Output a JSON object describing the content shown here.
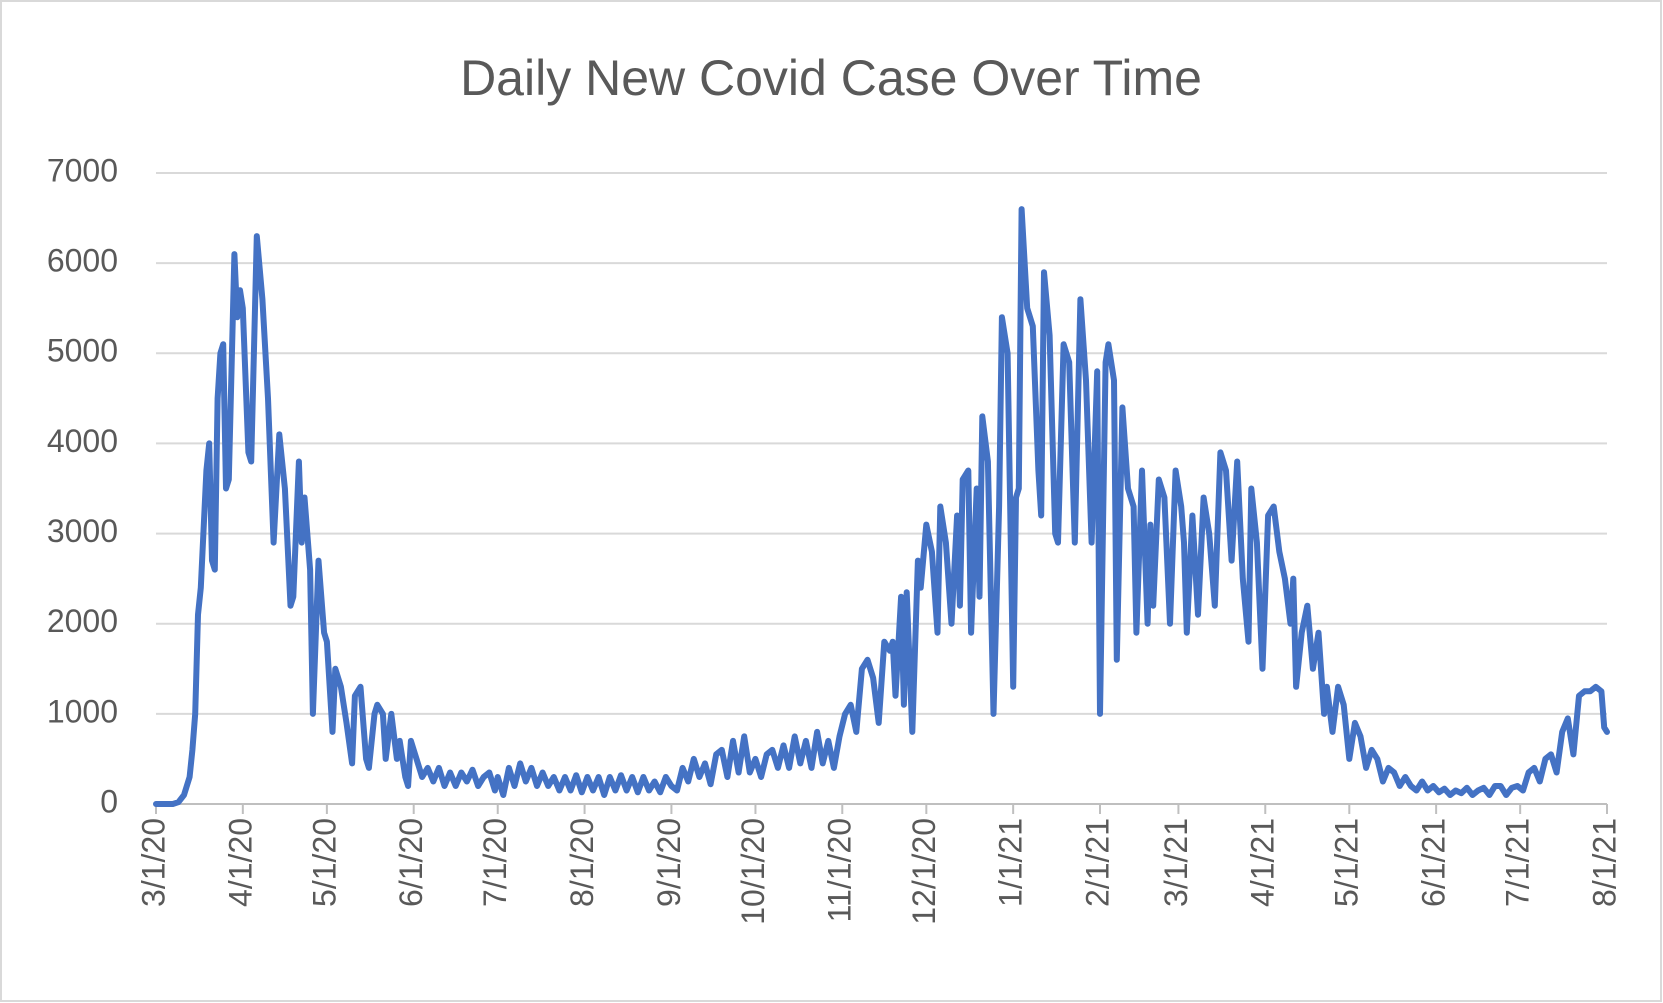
{
  "chart_data": {
    "type": "line",
    "title": "Daily New Covid Case Over Time",
    "x": [
      0,
      6,
      8,
      10,
      12,
      13,
      14,
      15,
      16,
      18,
      19,
      20,
      21,
      22,
      23,
      24,
      25,
      26,
      28,
      29,
      30,
      31,
      33,
      34,
      36,
      38,
      40,
      42,
      44,
      46,
      48,
      49,
      51,
      52,
      53,
      55,
      56,
      58,
      60,
      61,
      63,
      64,
      66,
      68,
      70,
      71,
      73,
      75,
      76,
      78,
      79,
      81,
      82,
      84,
      86,
      87,
      89,
      90,
      91,
      93,
      95,
      97,
      99,
      101,
      103,
      105,
      107,
      109,
      111,
      113,
      115,
      117,
      119,
      121,
      122,
      124,
      126,
      128,
      130,
      132,
      134,
      136,
      138,
      140,
      142,
      144,
      146,
      148,
      150,
      152,
      154,
      156,
      158,
      160,
      162,
      164,
      166,
      168,
      170,
      172,
      174,
      176,
      178,
      180,
      182,
      184,
      186,
      188,
      190,
      192,
      194,
      196,
      198,
      200,
      202,
      204,
      206,
      208,
      210,
      212,
      214,
      216,
      218,
      220,
      222,
      224,
      226,
      228,
      230,
      232,
      234,
      236,
      238,
      240,
      242,
      244,
      246,
      248,
      250,
      252,
      254,
      256,
      258,
      260,
      262,
      263,
      264,
      266,
      267,
      268,
      270,
      272,
      273,
      275,
      277,
      279,
      280,
      282,
      284,
      286,
      287,
      288,
      290,
      291,
      293,
      294,
      295,
      297,
      299,
      301,
      302,
      304,
      306,
      307,
      308,
      309,
      311,
      313,
      315,
      316,
      317,
      319,
      321,
      322,
      324,
      326,
      328,
      330,
      332,
      334,
      336,
      337,
      339,
      340,
      342,
      343,
      345,
      347,
      349,
      350,
      352,
      354,
      355,
      356,
      358,
      360,
      362,
      364,
      366,
      367,
      368,
      370,
      372,
      374,
      376,
      378,
      380,
      382,
      384,
      386,
      388,
      390,
      391,
      393,
      395,
      397,
      399,
      401,
      403,
      405,
      406,
      407,
      409,
      411,
      413,
      415,
      417,
      418,
      420,
      422,
      424,
      426,
      428,
      430,
      432,
      434,
      436,
      438,
      440,
      442,
      444,
      446,
      448,
      450,
      452,
      454,
      456,
      458,
      460,
      462,
      464,
      466,
      468,
      470,
      472,
      474,
      476,
      478,
      480,
      482,
      484,
      486,
      488,
      490,
      492,
      494,
      496,
      498,
      500,
      502,
      504,
      506,
      508,
      510,
      512,
      514,
      516,
      517,
      518
    ],
    "values": [
      0,
      0,
      20,
      100,
      300,
      600,
      1000,
      2100,
      2400,
      3700,
      4000,
      2700,
      2600,
      4500,
      5000,
      5100,
      3500,
      3600,
      6100,
      5400,
      5700,
      5500,
      3900,
      3800,
      6300,
      5600,
      4500,
      2900,
      4100,
      3500,
      2200,
      2300,
      3800,
      2900,
      3400,
      2600,
      1000,
      2700,
      1900,
      1800,
      800,
      1500,
      1300,
      900,
      450,
      1200,
      1300,
      500,
      400,
      1000,
      1100,
      1000,
      500,
      1000,
      500,
      700,
      300,
      200,
      700,
      500,
      300,
      400,
      250,
      400,
      200,
      350,
      200,
      350,
      250,
      380,
      200,
      300,
      350,
      150,
      300,
      100,
      400,
      200,
      450,
      250,
      400,
      200,
      350,
      200,
      300,
      150,
      300,
      150,
      320,
      130,
      300,
      150,
      300,
      100,
      300,
      150,
      320,
      150,
      300,
      130,
      300,
      150,
      250,
      130,
      300,
      200,
      150,
      400,
      250,
      500,
      300,
      450,
      220,
      550,
      600,
      300,
      700,
      350,
      750,
      350,
      500,
      300,
      550,
      600,
      400,
      650,
      400,
      750,
      450,
      700,
      400,
      800,
      450,
      700,
      400,
      750,
      1000,
      1100,
      800,
      1500,
      1600,
      1400,
      900,
      1800,
      1700,
      1800,
      1200,
      2300,
      1100,
      2350,
      800,
      2700,
      2400,
      3100,
      2800,
      1900,
      3300,
      2900,
      2000,
      3200,
      2200,
      3600,
      3700,
      1900,
      3500,
      2300,
      4300,
      3800,
      1000,
      3300,
      5400,
      5000,
      1300,
      3400,
      3500,
      6600,
      5500,
      5300,
      3700,
      3200,
      5900,
      5200,
      3000,
      2900,
      5100,
      4900,
      2900,
      5600,
      4700,
      2900,
      4800,
      1000,
      4900,
      5100,
      4700,
      1600,
      4400,
      3500,
      3300,
      1900,
      3700,
      2000,
      3100,
      2200,
      3600,
      3400,
      2000,
      3700,
      3300,
      2900,
      1900,
      3200,
      2100,
      3400,
      3000,
      2200,
      3900,
      3700,
      2700,
      3800,
      2500,
      1800,
      3500,
      2900,
      1500,
      3200,
      3300,
      2800,
      2500,
      2000,
      2500,
      1300,
      1900,
      2200,
      1500,
      1900,
      1000,
      1300,
      800,
      1300,
      1100,
      500,
      900,
      750,
      400,
      600,
      500,
      250,
      400,
      350,
      200,
      300,
      200,
      150,
      250,
      150,
      200,
      130,
      170,
      100,
      150,
      120,
      180,
      100,
      150,
      180,
      100,
      200,
      200,
      100,
      180,
      200,
      150,
      350,
      400,
      250,
      500,
      550,
      350,
      800,
      950,
      550,
      1200,
      1250,
      1250,
      1300,
      1250,
      850,
      800
    ],
    "color": "#4472c4",
    "xlim": [
      0,
      518
    ],
    "xticks": [
      {
        "value": 0,
        "label": "3/1/20"
      },
      {
        "value": 31,
        "label": "4/1/20"
      },
      {
        "value": 61,
        "label": "5/1/20"
      },
      {
        "value": 92,
        "label": "6/1/20"
      },
      {
        "value": 122,
        "label": "7/1/20"
      },
      {
        "value": 153,
        "label": "8/1/20"
      },
      {
        "value": 184,
        "label": "9/1/20"
      },
      {
        "value": 214,
        "label": "10/1/20"
      },
      {
        "value": 245,
        "label": "11/1/20"
      },
      {
        "value": 275,
        "label": "12/1/20"
      },
      {
        "value": 306,
        "label": "1/1/21"
      },
      {
        "value": 337,
        "label": "2/1/21"
      },
      {
        "value": 365,
        "label": "3/1/21"
      },
      {
        "value": 396,
        "label": "4/1/21"
      },
      {
        "value": 426,
        "label": "5/1/21"
      },
      {
        "value": 457,
        "label": "6/1/21"
      },
      {
        "value": 487,
        "label": "7/1/21"
      },
      {
        "value": 518,
        "label": "8/1/21"
      }
    ],
    "ylim": [
      0,
      7000
    ],
    "yticks": [
      0,
      1000,
      2000,
      3000,
      4000,
      5000,
      6000,
      7000
    ],
    "grid": true
  }
}
